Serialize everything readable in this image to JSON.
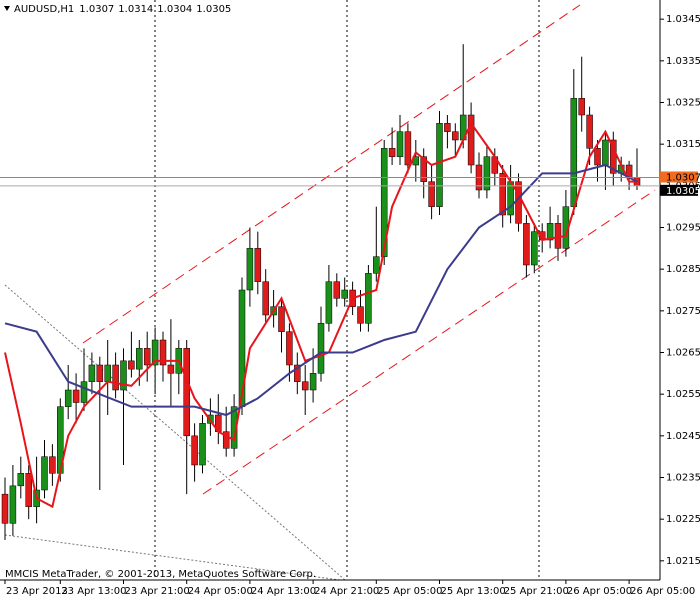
{
  "chart_data": {
    "type": "candlestick",
    "symbol": "AUDUSD,H1",
    "footer": "MMCIS MetaTrader, © 2001-2013, MetaQuotes Software Corp.",
    "ylim": [
      1.02104,
      1.03496
    ],
    "yticks": [
      1.0345,
      1.0335,
      1.0325,
      1.0315,
      1.0305,
      1.0295,
      1.0285,
      1.0275,
      1.0265,
      1.0255,
      1.0245,
      1.0235,
      1.0225,
      1.0215
    ],
    "xticks": [
      {
        "value": 0,
        "label": "23 Apr 2013"
      },
      {
        "value": 7,
        "label": "23 Apr 13:00"
      },
      {
        "value": 15,
        "label": "23 Apr 21:00"
      },
      {
        "value": 23,
        "label": "24 Apr 05:00"
      },
      {
        "value": 31,
        "label": "24 Apr 13:00"
      },
      {
        "value": 39,
        "label": "24 Apr 21:00"
      },
      {
        "value": 47,
        "label": "25 Apr 05:00"
      },
      {
        "value": 55,
        "label": "25 Apr 13:00"
      },
      {
        "value": 63,
        "label": "25 Apr 21:00"
      },
      {
        "value": 71,
        "label": "26 Apr 05:00"
      },
      {
        "value": 79,
        "label": "26 Apr 05:00"
      }
    ],
    "up_color": "#1a8f1a",
    "down_color": "#e01b1b",
    "ask_line": 1.0307,
    "bid_line": 1.0305,
    "open": [
      1.0231,
      1.0224,
      1.0233,
      1.0236,
      1.0228,
      1.0232,
      1.024,
      1.0236,
      1.0252,
      1.0256,
      1.0253,
      1.0258,
      1.0262,
      1.0258,
      1.0262,
      1.0256,
      1.0263,
      1.0261,
      1.0266,
      1.0262,
      1.0268,
      1.0262,
      1.026,
      1.0266,
      1.0245,
      1.0238,
      1.0248,
      1.025,
      1.0246,
      1.0242,
      1.0252,
      1.028,
      1.029,
      1.0282,
      1.0274,
      1.0276,
      1.027,
      1.0262,
      1.0258,
      1.0256,
      1.026,
      1.0272,
      1.0282,
      1.0278,
      1.028,
      1.0276,
      1.0272,
      1.0284,
      1.0288,
      1.0314,
      1.0312,
      1.0318,
      1.031,
      1.0312,
      1.0306,
      1.03,
      1.032,
      1.0318,
      1.0316,
      1.0322,
      1.031,
      1.0304,
      1.0312,
      1.0308,
      1.0298,
      1.0306,
      1.0296,
      1.0286,
      1.0294,
      1.0292,
      1.0296,
      1.029,
      1.03,
      1.0326,
      1.0322,
      1.0314,
      1.031,
      1.0316,
      1.0308,
      1.031,
      1.0307
    ],
    "high": [
      1.0235,
      1.0238,
      1.024,
      1.0238,
      1.024,
      1.0244,
      1.0243,
      1.0254,
      1.0262,
      1.026,
      1.0266,
      1.0265,
      1.0264,
      1.0268,
      1.0265,
      1.0266,
      1.027,
      1.0268,
      1.027,
      1.0271,
      1.027,
      1.0273,
      1.0268,
      1.0268,
      1.0248,
      1.025,
      1.0254,
      1.0255,
      1.0252,
      1.0255,
      1.0283,
      1.0295,
      1.0294,
      1.0285,
      1.028,
      1.0278,
      1.0272,
      1.0265,
      1.0262,
      1.0266,
      1.0276,
      1.0286,
      1.0284,
      1.0283,
      1.0282,
      1.028,
      1.0286,
      1.03,
      1.0316,
      1.0319,
      1.0322,
      1.032,
      1.0316,
      1.0314,
      1.031,
      1.0323,
      1.0322,
      1.032,
      1.0339,
      1.0325,
      1.0313,
      1.0315,
      1.0314,
      1.031,
      1.031,
      1.0308,
      1.0298,
      1.0296,
      1.0296,
      1.03,
      1.0298,
      1.0304,
      1.0333,
      1.0336,
      1.0324,
      1.0316,
      1.0318,
      1.0318,
      1.0312,
      1.0311,
      1.0314
    ],
    "low": [
      1.022,
      1.0221,
      1.023,
      1.0225,
      1.0224,
      1.023,
      1.0233,
      1.0234,
      1.0249,
      1.0248,
      1.0251,
      1.0255,
      1.0232,
      1.025,
      1.0254,
      1.0238,
      1.0259,
      1.0257,
      1.0258,
      1.0255,
      1.0258,
      1.0252,
      1.0255,
      1.0231,
      1.0234,
      1.0236,
      1.0245,
      1.0243,
      1.024,
      1.024,
      1.025,
      1.0276,
      1.0279,
      1.0272,
      1.0271,
      1.0265,
      1.0258,
      1.0255,
      1.025,
      1.0253,
      1.0258,
      1.027,
      1.0276,
      1.0276,
      1.0274,
      1.027,
      1.027,
      1.0282,
      1.0286,
      1.031,
      1.031,
      1.0308,
      1.0306,
      1.0302,
      1.0297,
      1.0298,
      1.0314,
      1.0312,
      1.0314,
      1.0308,
      1.0302,
      1.0302,
      1.0305,
      1.0295,
      1.0296,
      1.0294,
      1.0283,
      1.0284,
      1.0289,
      1.029,
      1.0287,
      1.0288,
      1.0298,
      1.0318,
      1.031,
      1.0306,
      1.0304,
      1.0305,
      1.0306,
      1.0304,
      1.0304
    ],
    "close": [
      1.0224,
      1.0233,
      1.0236,
      1.0228,
      1.0232,
      1.024,
      1.0236,
      1.0252,
      1.0256,
      1.0253,
      1.0258,
      1.0262,
      1.0258,
      1.0262,
      1.0256,
      1.0263,
      1.0261,
      1.0266,
      1.0262,
      1.0268,
      1.0262,
      1.026,
      1.0266,
      1.0245,
      1.0238,
      1.0248,
      1.025,
      1.0246,
      1.0242,
      1.0252,
      1.028,
      1.029,
      1.0282,
      1.0274,
      1.0276,
      1.027,
      1.0262,
      1.0258,
      1.0256,
      1.026,
      1.0272,
      1.0282,
      1.0278,
      1.028,
      1.0276,
      1.0272,
      1.0284,
      1.0288,
      1.0314,
      1.0312,
      1.0318,
      1.031,
      1.0312,
      1.0306,
      1.03,
      1.032,
      1.0318,
      1.0316,
      1.0322,
      1.031,
      1.0304,
      1.0312,
      1.0308,
      1.0298,
      1.0306,
      1.0296,
      1.0286,
      1.0294,
      1.0292,
      1.0296,
      1.029,
      1.03,
      1.0326,
      1.0322,
      1.0314,
      1.031,
      1.0316,
      1.0308,
      1.031,
      1.0307,
      1.0305
    ],
    "series": [
      {
        "color": "#e8141a",
        "x": [
          0,
          2,
          4,
          6,
          8,
          10,
          13,
          16,
          19,
          22,
          24,
          27,
          29,
          31,
          35,
          38,
          41,
          44,
          47,
          49,
          52,
          54,
          57,
          59,
          62,
          65,
          68,
          71,
          74,
          76,
          79,
          80
        ],
        "values": [
          1.0265,
          1.0248,
          1.023,
          1.0228,
          1.0245,
          1.0252,
          1.0258,
          1.0257,
          1.0263,
          1.0263,
          1.0254,
          1.0246,
          1.0244,
          1.0266,
          1.0278,
          1.0263,
          1.0265,
          1.0278,
          1.028,
          1.03,
          1.0313,
          1.031,
          1.0312,
          1.032,
          1.0312,
          1.0303,
          1.0292,
          1.0293,
          1.0312,
          1.0318,
          1.0306,
          1.0306
        ]
      },
      {
        "color": "#3c3c8c",
        "x": [
          0,
          4,
          8,
          12,
          16,
          20,
          24,
          28,
          32,
          36,
          40,
          44,
          48,
          52,
          56,
          60,
          64,
          68,
          72,
          76,
          80
        ],
        "values": [
          1.0272,
          1.027,
          1.0258,
          1.0255,
          1.0252,
          1.0252,
          1.0252,
          1.025,
          1.0254,
          1.026,
          1.0265,
          1.0265,
          1.0268,
          1.027,
          1.0285,
          1.0295,
          1.03,
          1.0308,
          1.0308,
          1.031,
          1.0306
        ]
      }
    ]
  }
}
